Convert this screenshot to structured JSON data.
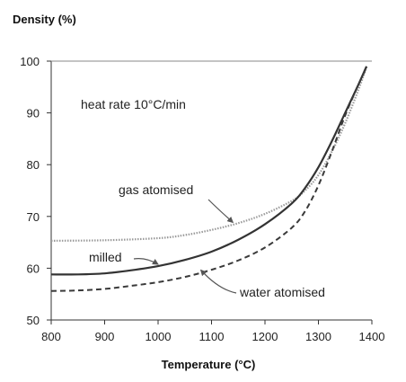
{
  "chart_data": {
    "type": "line",
    "title": "",
    "ylabel": "Density (%)",
    "xlabel": "Temperature (°C)",
    "xlim": [
      800,
      1400
    ],
    "ylim": [
      50,
      100
    ],
    "xticks": [
      800,
      900,
      1000,
      1100,
      1200,
      1300,
      1400
    ],
    "yticks": [
      50,
      60,
      70,
      80,
      90,
      100
    ],
    "note": "heat rate 10°C/min",
    "grid": false,
    "series": [
      {
        "name": "gas atomised",
        "style": "dotted",
        "color": "#9a9a9a",
        "x": [
          800,
          900,
          1000,
          1050,
          1100,
          1150,
          1200,
          1250,
          1275,
          1300,
          1325,
          1350,
          1375,
          1390
        ],
        "y": [
          65.3,
          65.4,
          65.8,
          66.4,
          67.4,
          68.7,
          70.5,
          73.0,
          75.0,
          78.0,
          82.5,
          88.0,
          94.5,
          98.8
        ]
      },
      {
        "name": "milled",
        "style": "solid",
        "color": "#333333",
        "x": [
          800,
          850,
          900,
          950,
          1000,
          1050,
          1100,
          1150,
          1200,
          1250,
          1275,
          1300,
          1325,
          1350,
          1375,
          1390
        ],
        "y": [
          58.8,
          58.8,
          59.0,
          59.6,
          60.4,
          61.6,
          63.2,
          65.5,
          68.5,
          72.5,
          75.5,
          79.5,
          84.5,
          90.0,
          95.5,
          99.0
        ]
      },
      {
        "name": "water atomised",
        "style": "dashed",
        "color": "#3a3a3a",
        "x": [
          800,
          850,
          900,
          950,
          1000,
          1050,
          1100,
          1150,
          1200,
          1250,
          1275,
          1300,
          1325,
          1350,
          1375,
          1390
        ],
        "y": [
          55.6,
          55.7,
          56.0,
          56.6,
          57.3,
          58.3,
          59.7,
          61.5,
          64.0,
          67.8,
          71.0,
          76.0,
          82.5,
          89.5,
          95.5,
          98.8
        ]
      }
    ],
    "annotations": [
      {
        "text": "gas atomised",
        "series": "gas atomised",
        "arrow_to": [
          1140,
          68.5
        ]
      },
      {
        "text": "milled",
        "series": "milled",
        "arrow_to": [
          1000,
          60.4
        ]
      },
      {
        "text": "water atomised",
        "series": "water atomised",
        "arrow_to": [
          1080,
          59.3
        ]
      }
    ]
  }
}
